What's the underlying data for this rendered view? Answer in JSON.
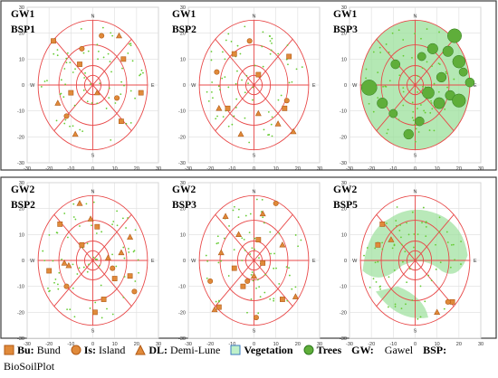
{
  "colors": {
    "frame": "#3c3c3c",
    "grid": "#dedede",
    "tick_text": "#333333",
    "red_lines": "#e84848",
    "symbol_fill": "#e08a3a",
    "symbol_stroke": "#b25a16",
    "vegetation": "#9be09b",
    "trees": "#5fae3a",
    "veg_dot": "#66cc33"
  },
  "axis": {
    "ticks": [
      "-30",
      "-20",
      "-10",
      "0",
      "10",
      "20",
      "30"
    ],
    "compass": {
      "north": "N",
      "south": "S",
      "east": "E",
      "west": "W"
    }
  },
  "panels": [
    {
      "title": "GW1",
      "subtitle": "BSP1",
      "vegetation": "none",
      "trees": [],
      "bunds": [
        [
          -18,
          17
        ],
        [
          14,
          10
        ],
        [
          22,
          -3
        ],
        [
          13,
          -14
        ],
        [
          -6,
          8
        ],
        [
          -10,
          -3
        ]
      ],
      "islands": [
        [
          -12,
          -12
        ],
        [
          -5,
          14
        ],
        [
          11,
          -5
        ],
        [
          4,
          19
        ]
      ],
      "demilunes": [
        [
          12,
          19
        ],
        [
          -8,
          -19
        ],
        [
          -16,
          -7
        ],
        [
          2,
          -3
        ]
      ]
    },
    {
      "title": "GW1",
      "subtitle": "BSP2",
      "vegetation": "none",
      "trees": [],
      "bunds": [
        [
          -9,
          12
        ],
        [
          14,
          -9
        ],
        [
          2,
          4
        ],
        [
          -12,
          -9
        ],
        [
          16,
          11
        ]
      ],
      "islands": [
        [
          -2,
          17
        ],
        [
          15,
          -6
        ],
        [
          -17,
          5
        ]
      ],
      "demilunes": [
        [
          -16,
          -9
        ],
        [
          -6,
          -19
        ],
        [
          11,
          -15
        ],
        [
          2,
          -11
        ],
        [
          18,
          -18
        ]
      ]
    },
    {
      "title": "GW1",
      "subtitle": "BSP3",
      "vegetation": "full",
      "trees": [
        [
          18,
          19,
          2.0
        ],
        [
          15,
          13,
          1.5
        ],
        [
          20,
          9,
          1.8
        ],
        [
          22,
          5,
          1.2
        ],
        [
          11,
          -7,
          1.6
        ],
        [
          16,
          -4,
          1.4
        ],
        [
          20,
          -6,
          1.9
        ],
        [
          25,
          1,
          1.3
        ],
        [
          -21,
          -1,
          2.2
        ],
        [
          -15,
          -7,
          1.5
        ],
        [
          6,
          -3,
          1.7
        ],
        [
          2,
          -14,
          1.3
        ],
        [
          -9,
          8,
          1.3
        ],
        [
          -10,
          -11,
          1.2
        ],
        [
          12,
          3,
          1.4
        ],
        [
          8,
          14,
          1.5
        ],
        [
          3,
          11,
          1.2
        ],
        [
          -3,
          -19,
          1.4
        ]
      ],
      "bunds": [],
      "islands": [],
      "demilunes": []
    },
    {
      "title": "GW2",
      "subtitle": "BSP2",
      "vegetation": "none",
      "trees": [],
      "bunds": [
        [
          -15,
          14
        ],
        [
          2,
          13
        ],
        [
          -5,
          6
        ],
        [
          10,
          -7
        ],
        [
          5,
          -15
        ],
        [
          -20,
          -4
        ],
        [
          17,
          -6
        ],
        [
          1,
          -20
        ]
      ],
      "islands": [
        [
          -12,
          -10
        ],
        [
          19,
          -12
        ],
        [
          9,
          -3
        ]
      ],
      "demilunes": [
        [
          -6,
          22
        ],
        [
          -1,
          16
        ],
        [
          7,
          1
        ],
        [
          13,
          3
        ],
        [
          -11,
          -2
        ],
        [
          17,
          9
        ],
        [
          -13,
          -1
        ]
      ]
    },
    {
      "title": "GW2",
      "subtitle": "BSP3",
      "vegetation": "none",
      "trees": [],
      "bunds": [
        [
          2,
          8
        ],
        [
          -9,
          -3
        ],
        [
          -5,
          -10
        ],
        [
          13,
          -15
        ],
        [
          4,
          -1
        ],
        [
          -16,
          -18
        ]
      ],
      "islands": [
        [
          10,
          22
        ],
        [
          -20,
          -8
        ],
        [
          -3,
          -8
        ],
        [
          1,
          -22
        ]
      ],
      "demilunes": [
        [
          -13,
          17
        ],
        [
          -7,
          10
        ],
        [
          4,
          18
        ],
        [
          -15,
          3
        ],
        [
          13,
          6
        ],
        [
          0,
          -6
        ],
        [
          19,
          -14
        ],
        [
          -18,
          -19
        ]
      ]
    },
    {
      "title": "GW2",
      "subtitle": "BSP5",
      "vegetation": "partial",
      "trees": [],
      "bunds": [
        [
          -15,
          14
        ],
        [
          -17,
          6
        ],
        [
          17,
          -16
        ]
      ],
      "islands": [
        [
          15,
          -16
        ]
      ],
      "demilunes": [
        [
          -11,
          8
        ],
        [
          10,
          -20
        ]
      ]
    }
  ],
  "legend": {
    "items": [
      {
        "key": "Bu:",
        "label": "Bund",
        "symbol": "square"
      },
      {
        "key": "Is:",
        "label": "Island",
        "symbol": "circle"
      },
      {
        "key": "DL:",
        "label": "Demi-Lune",
        "symbol": "triangle"
      },
      {
        "key": "Vegetation",
        "label": "",
        "symbol": "veg"
      },
      {
        "key": "Trees",
        "label": "",
        "symbol": "tree"
      }
    ],
    "gw_key": "GW:",
    "gw_label": "Gawel",
    "bsp_key": "BSP:",
    "bsp_label": "BioSoilPlot"
  }
}
